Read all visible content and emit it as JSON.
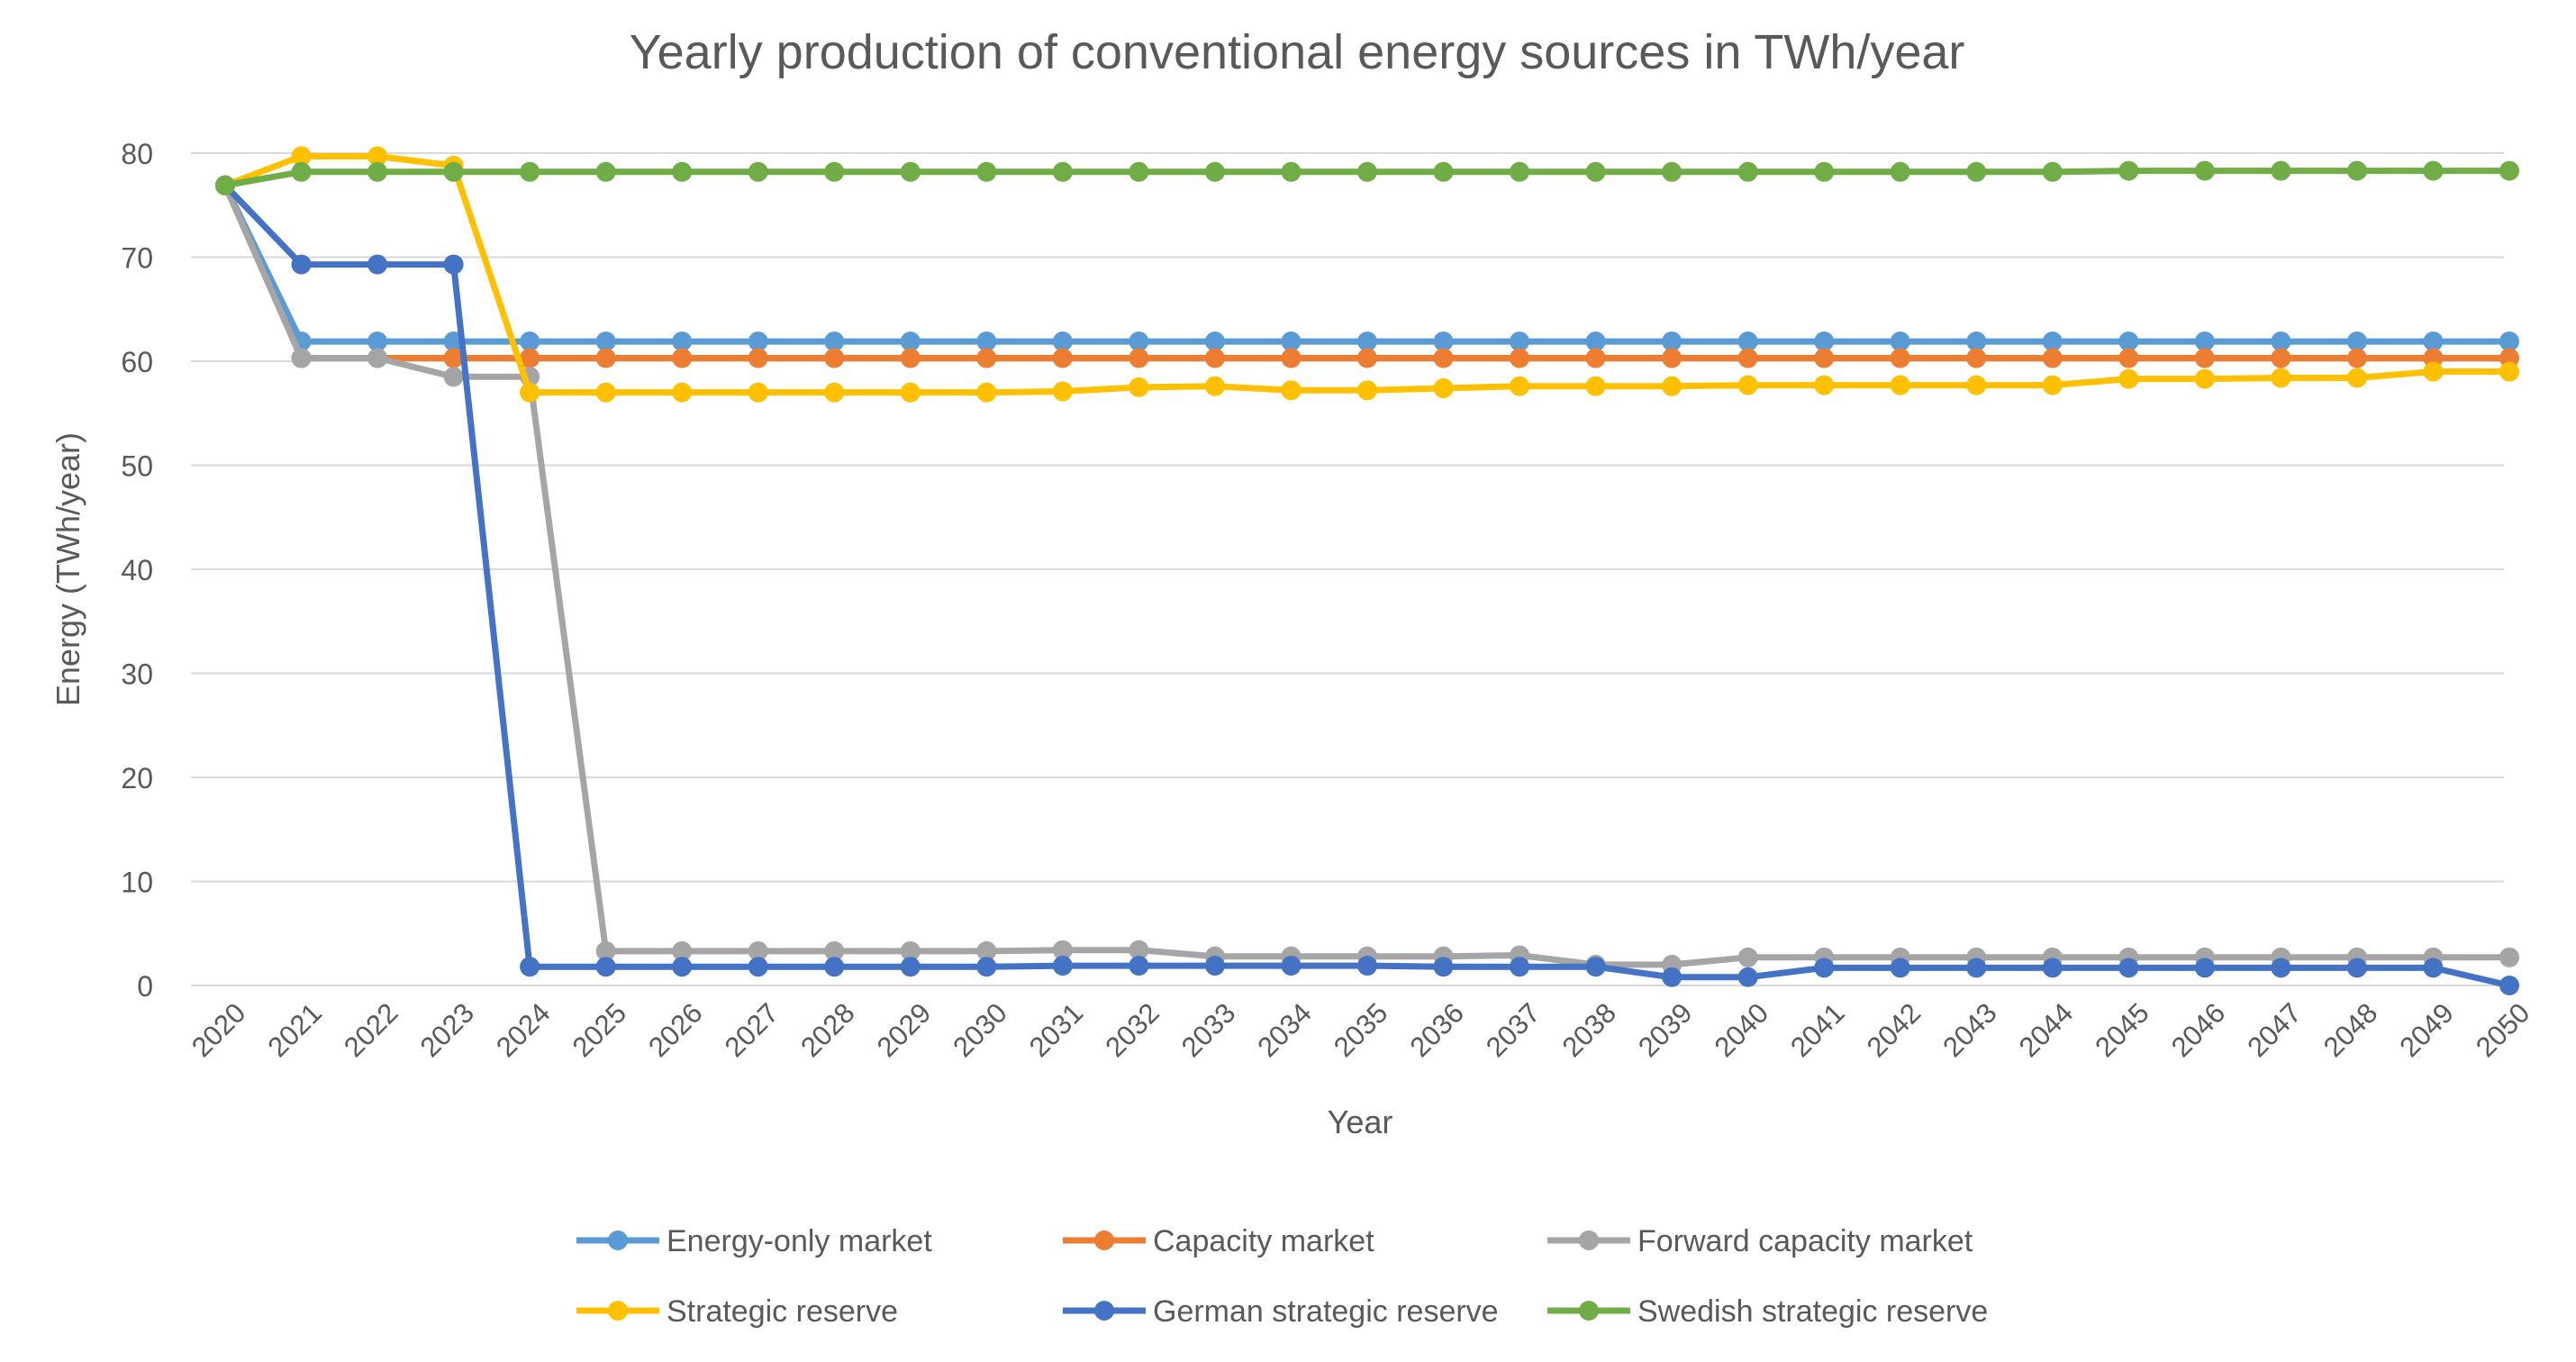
{
  "chart_data": {
    "type": "line",
    "title": "Yearly production of conventional energy sources in TWh/year",
    "xlabel": "Year",
    "ylabel": "Energy (TWh/year)",
    "ylim": [
      0,
      80
    ],
    "yticks": [
      0,
      10,
      20,
      30,
      40,
      50,
      60,
      70,
      80
    ],
    "grid": true,
    "legend_position": "bottom",
    "categories": [
      "2020",
      "2021",
      "2022",
      "2023",
      "2024",
      "2025",
      "2026",
      "2027",
      "2028",
      "2029",
      "2030",
      "2031",
      "2032",
      "2033",
      "2034",
      "2035",
      "2036",
      "2037",
      "2038",
      "2039",
      "2040",
      "2041",
      "2042",
      "2043",
      "2044",
      "2045",
      "2046",
      "2047",
      "2048",
      "2049",
      "2050"
    ],
    "series": [
      {
        "name": "Energy-only market",
        "color": "#5B9BD5",
        "values": [
          76.9,
          61.9,
          61.9,
          61.9,
          61.9,
          61.9,
          61.9,
          61.9,
          61.9,
          61.9,
          61.9,
          61.9,
          61.9,
          61.9,
          61.9,
          61.9,
          61.9,
          61.9,
          61.9,
          61.9,
          61.9,
          61.9,
          61.9,
          61.9,
          61.9,
          61.9,
          61.9,
          61.9,
          61.9,
          61.9,
          61.9
        ]
      },
      {
        "name": "Capacity market",
        "color": "#ED7D31",
        "values": [
          76.9,
          60.3,
          60.3,
          60.3,
          60.3,
          60.3,
          60.3,
          60.3,
          60.3,
          60.3,
          60.3,
          60.3,
          60.3,
          60.3,
          60.3,
          60.3,
          60.3,
          60.3,
          60.3,
          60.3,
          60.3,
          60.3,
          60.3,
          60.3,
          60.3,
          60.3,
          60.3,
          60.3,
          60.3,
          60.3,
          60.3
        ]
      },
      {
        "name": "Forward capacity market",
        "color": "#A5A5A5",
        "values": [
          76.9,
          60.3,
          60.3,
          58.5,
          58.5,
          3.3,
          3.3,
          3.3,
          3.3,
          3.3,
          3.3,
          3.4,
          3.4,
          2.8,
          2.8,
          2.8,
          2.8,
          2.9,
          2.0,
          2.0,
          2.7,
          2.7,
          2.7,
          2.7,
          2.7,
          2.7,
          2.7,
          2.7,
          2.7,
          2.7,
          2.7
        ]
      },
      {
        "name": "Strategic reserve",
        "color": "#FFC000",
        "values": [
          76.9,
          79.7,
          79.7,
          78.8,
          57.0,
          57.0,
          57.0,
          57.0,
          57.0,
          57.0,
          57.0,
          57.1,
          57.5,
          57.6,
          57.2,
          57.2,
          57.4,
          57.6,
          57.6,
          57.6,
          57.7,
          57.7,
          57.7,
          57.7,
          57.7,
          58.3,
          58.3,
          58.4,
          58.4,
          59.0,
          59.0
        ]
      },
      {
        "name": "German strategic reserve",
        "color": "#4472C4",
        "values": [
          76.9,
          69.3,
          69.3,
          69.3,
          1.8,
          1.8,
          1.8,
          1.8,
          1.8,
          1.8,
          1.8,
          1.9,
          1.9,
          1.9,
          1.9,
          1.9,
          1.8,
          1.8,
          1.8,
          0.8,
          0.8,
          1.7,
          1.7,
          1.7,
          1.7,
          1.7,
          1.7,
          1.7,
          1.7,
          1.7,
          0.0
        ]
      },
      {
        "name": "Swedish strategic reserve",
        "color": "#70AD47",
        "values": [
          76.9,
          78.2,
          78.2,
          78.2,
          78.2,
          78.2,
          78.2,
          78.2,
          78.2,
          78.2,
          78.2,
          78.2,
          78.2,
          78.2,
          78.2,
          78.2,
          78.2,
          78.2,
          78.2,
          78.2,
          78.2,
          78.2,
          78.2,
          78.2,
          78.2,
          78.3,
          78.3,
          78.3,
          78.3,
          78.3,
          78.3
        ]
      }
    ]
  }
}
